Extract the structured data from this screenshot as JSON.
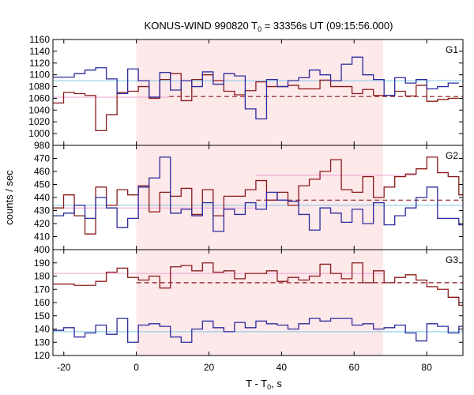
{
  "figure": {
    "title_main": "KONUS-WIND 990820 T",
    "title_sub": "0",
    "title_rest": " = 33356s UT (09:15:56.000)",
    "ylabel": "counts / sec",
    "xlabel_main": "T - T",
    "xlabel_sub": "0",
    "xlabel_rest": ", s"
  },
  "colors": {
    "signal_band": "#fde8ea",
    "red": "#8b1a1a",
    "blue": "#2b2b9e",
    "pink": "#f0a0d0",
    "cyan": "#80c8e8"
  },
  "chart_data": {
    "type": "line",
    "step": true,
    "bin_width": 2.944,
    "xlim": [
      -23,
      90
    ],
    "xticks": [
      -20,
      0,
      20,
      40,
      60,
      80
    ],
    "xlabel": "T - T0, s",
    "ylabel": "counts / sec",
    "highlight_interval": [
      0,
      68
    ],
    "panels": [
      {
        "name": "G1",
        "ylim": [
          980,
          1160
        ],
        "yticks": [
          980,
          1000,
          1020,
          1040,
          1060,
          1080,
          1100,
          1120,
          1140,
          1160
        ],
        "series": [
          {
            "color": "red",
            "x_start": -23.0,
            "values": [
              1052,
              1070,
              1068,
              1065,
              1005,
              1032,
              1070,
              1072,
              1080,
              1060,
              1092,
              1102,
              1056,
              1092,
              1100,
              1090,
              1072,
              1066,
              1073,
              1088,
              1080,
              1080,
              1082,
              1076,
              1076,
              1091,
              1080,
              1080,
              1068,
              1075,
              1065,
              1065,
              1072,
              1064,
              1082,
              1055,
              1058,
              1060
            ]
          },
          {
            "color": "blue",
            "x_start": -23.0,
            "values": [
              1096,
              1096,
              1102,
              1108,
              1112,
              1093,
              1068,
              1110,
              1090,
              1062,
              1104,
              1074,
              1090,
              1080,
              1105,
              1084,
              1102,
              1098,
              1042,
              1025,
              1092,
              1080,
              1090,
              1095,
              1108,
              1100,
              1090,
              1118,
              1130,
              1100,
              1092,
              1065,
              1095,
              1086,
              1092,
              1076,
              1080,
              1086
            ]
          }
        ],
        "levels": [
          {
            "color": "pink",
            "style": "solid",
            "x": [
              -23,
              9
            ],
            "y": 1062
          },
          {
            "color": "cyan",
            "style": "solid",
            "x": [
              -23,
              90
            ],
            "y": 1090
          },
          {
            "color": "red",
            "style": "dashed",
            "x": [
              9,
              90
            ],
            "y": 1063
          }
        ]
      },
      {
        "name": "G2",
        "ylim": [
          400,
          480
        ],
        "yticks": [
          400,
          410,
          420,
          430,
          440,
          450,
          460,
          470
        ],
        "series": [
          {
            "color": "red",
            "x_start": -23.0,
            "values": [
              432,
              442,
              426,
              412,
              448,
              434,
              446,
              442,
              449,
              429,
              444,
              441,
              447,
              427,
              446,
              426,
              441,
              441,
              446,
              453,
              438,
              444,
              434,
              449,
              454,
              460,
              469,
              446,
              444,
              456,
              440,
              448,
              456,
              458,
              462,
              471,
              459,
              456,
              442,
              454
            ]
          },
          {
            "color": "blue",
            "x_start": -23.0,
            "values": [
              426,
              428,
              434,
              424,
              440,
              432,
              417,
              424,
              448,
              455,
              471,
              428,
              431,
              426,
              436,
              414,
              431,
              427,
              436,
              431,
              444,
              438,
              437,
              427,
              415,
              432,
              428,
              421,
              431,
              420,
              436,
              419,
              426,
              432,
              440,
              448,
              424,
              424,
              419,
              439
            ]
          }
        ],
        "levels": [
          {
            "color": "pink",
            "style": "solid",
            "x": [
              -23,
              33
            ],
            "y": 432
          },
          {
            "color": "pink",
            "style": "solid",
            "x": [
              33,
              77
            ],
            "y": 457
          },
          {
            "color": "cyan",
            "style": "solid",
            "x": [
              -23,
              90
            ],
            "y": 434
          },
          {
            "color": "red",
            "style": "dashed",
            "x": [
              33,
              90
            ],
            "y": 438
          }
        ]
      },
      {
        "name": "G3",
        "ylim": [
          120,
          200
        ],
        "yticks": [
          120,
          130,
          140,
          150,
          160,
          170,
          180,
          190
        ],
        "series": [
          {
            "color": "red",
            "x_start": -23.0,
            "values": [
              174,
              174,
              173,
              173,
              176,
              183,
              186,
              179,
              177,
              180,
              171,
              187,
              188,
              184,
              190,
              183,
              184,
              178,
              182,
              182,
              184,
              176,
              179,
              177,
              180,
              189,
              182,
              178,
              190,
              175,
              184,
              175,
              179,
              181,
              177,
              172,
              170,
              164,
              158,
              166
            ]
          },
          {
            "color": "blue",
            "x_start": -23.0,
            "values": [
              139,
              141,
              134,
              137,
              143,
              136,
              148,
              130,
              143,
              144,
              142,
              134,
              130,
              140,
              146,
              141,
              138,
              145,
              141,
              146,
              144,
              143,
              140,
              144,
              148,
              146,
              148,
              148,
              143,
              144,
              140,
              141,
              143,
              137,
              131,
              144,
              142,
              137,
              142,
              148
            ]
          }
        ],
        "levels": [
          {
            "color": "pink",
            "style": "solid",
            "x": [
              -23,
              68
            ],
            "y": 182
          },
          {
            "color": "cyan",
            "style": "solid",
            "x": [
              -23,
              90
            ],
            "y": 138
          },
          {
            "color": "red",
            "style": "dashed",
            "x": [
              0,
              90
            ],
            "y": 175
          }
        ]
      }
    ]
  }
}
